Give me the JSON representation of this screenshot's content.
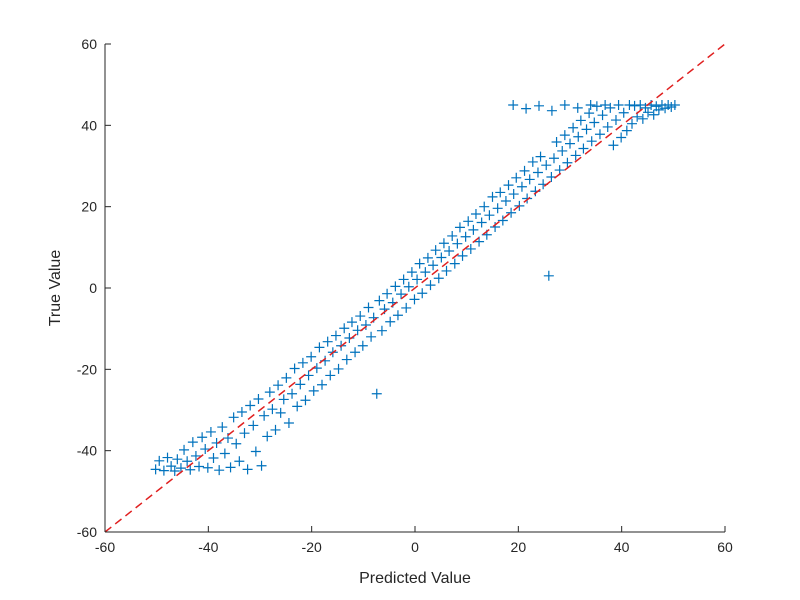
{
  "chart_data": {
    "type": "scatter",
    "title": "",
    "xlabel": "Predicted Value",
    "ylabel": "True Value",
    "xlim": [
      -60,
      60
    ],
    "ylim": [
      -60,
      60
    ],
    "xticks": [
      -60,
      -40,
      -20,
      0,
      20,
      40,
      60
    ],
    "yticks": [
      -60,
      -40,
      -20,
      0,
      20,
      40,
      60
    ],
    "xtick_labels": [
      "-60",
      "-40",
      "-20",
      "0",
      "20",
      "40",
      "60"
    ],
    "ytick_labels": [
      "-60",
      "-40",
      "-20",
      "0",
      "20",
      "40",
      "60"
    ],
    "marker": "+",
    "marker_color": "#0072BD",
    "reference_line": {
      "style": "dashed",
      "color": "#E02020",
      "points": [
        [
          -60,
          -60
        ],
        [
          60,
          60
        ]
      ]
    },
    "grid": false,
    "legend": "none",
    "box": false,
    "series": [
      {
        "points": [
          [
            -50.2,
            -44.6
          ],
          [
            -49.5,
            -42.5
          ],
          [
            -48.6,
            -44.9
          ],
          [
            -47.9,
            -41.7
          ],
          [
            -47.2,
            -43.8
          ],
          [
            -46.5,
            -45.0
          ],
          [
            -46.0,
            -42.1
          ],
          [
            -45.3,
            -44.3
          ],
          [
            -44.7,
            -39.8
          ],
          [
            -44.1,
            -42.6
          ],
          [
            -43.5,
            -44.7
          ],
          [
            -43.0,
            -37.9
          ],
          [
            -42.4,
            -41.3
          ],
          [
            -41.8,
            -43.9
          ],
          [
            -41.2,
            -36.7
          ],
          [
            -40.6,
            -39.6
          ],
          [
            -40.1,
            -44.2
          ],
          [
            -39.5,
            -35.4
          ],
          [
            -39.0,
            -41.8
          ],
          [
            -38.4,
            -38.1
          ],
          [
            -37.9,
            -44.8
          ],
          [
            -37.3,
            -34.2
          ],
          [
            -36.8,
            -40.7
          ],
          [
            -36.2,
            -36.9
          ],
          [
            -35.7,
            -44.1
          ],
          [
            -35.1,
            -31.8
          ],
          [
            -34.6,
            -38.3
          ],
          [
            -34.0,
            -42.6
          ],
          [
            -33.5,
            -30.5
          ],
          [
            -33.0,
            -35.7
          ],
          [
            -32.4,
            -44.6
          ],
          [
            -31.9,
            -28.9
          ],
          [
            -31.3,
            -33.8
          ],
          [
            -30.8,
            -40.2
          ],
          [
            -30.3,
            -27.3
          ],
          [
            -29.7,
            -43.7
          ],
          [
            -29.2,
            -31.4
          ],
          [
            -28.6,
            -36.5
          ],
          [
            -28.1,
            -25.6
          ],
          [
            -27.6,
            -29.8
          ],
          [
            -27.0,
            -34.9
          ],
          [
            -26.5,
            -23.9
          ],
          [
            -26.0,
            -30.7
          ],
          [
            -25.4,
            -27.4
          ],
          [
            -24.9,
            -22.1
          ],
          [
            -24.4,
            -33.2
          ],
          [
            -23.8,
            -26.0
          ],
          [
            -23.3,
            -19.8
          ],
          [
            -22.8,
            -29.1
          ],
          [
            -22.2,
            -23.7
          ],
          [
            -21.7,
            -18.4
          ],
          [
            -21.2,
            -27.6
          ],
          [
            -20.6,
            -21.5
          ],
          [
            -20.1,
            -16.9
          ],
          [
            -19.6,
            -25.3
          ],
          [
            -19.0,
            -19.7
          ],
          [
            -18.5,
            -14.6
          ],
          [
            -18.0,
            -23.8
          ],
          [
            -17.4,
            -17.9
          ],
          [
            -16.9,
            -13.2
          ],
          [
            -16.4,
            -21.5
          ],
          [
            -15.9,
            -15.8
          ],
          [
            -15.3,
            -11.7
          ],
          [
            -14.8,
            -19.9
          ],
          [
            -14.3,
            -14.2
          ],
          [
            -13.7,
            -9.9
          ],
          [
            -13.2,
            -17.6
          ],
          [
            -12.7,
            -12.3
          ],
          [
            -12.2,
            -8.4
          ],
          [
            -11.6,
            -15.8
          ],
          [
            -11.1,
            -10.4
          ],
          [
            -10.6,
            -6.9
          ],
          [
            -10.1,
            -14.2
          ],
          [
            -9.5,
            -9.1
          ],
          [
            -9.0,
            -4.8
          ],
          [
            -8.5,
            -12.0
          ],
          [
            -8.0,
            -7.3
          ],
          [
            -7.4,
            -26.0
          ],
          [
            -6.9,
            -3.1
          ],
          [
            -6.4,
            -10.5
          ],
          [
            -5.9,
            -5.2
          ],
          [
            -5.4,
            -1.4
          ],
          [
            -4.8,
            -8.3
          ],
          [
            -4.3,
            -3.6
          ],
          [
            -3.8,
            0.4
          ],
          [
            -3.3,
            -6.7
          ],
          [
            -2.7,
            -1.5
          ],
          [
            -2.2,
            2.1
          ],
          [
            -1.7,
            -4.9
          ],
          [
            -1.2,
            0.3
          ],
          [
            -0.6,
            3.9
          ],
          [
            -0.1,
            -2.8
          ],
          [
            0.4,
            2.1
          ],
          [
            0.9,
            6.0
          ],
          [
            1.4,
            -1.3
          ],
          [
            2.0,
            3.9
          ],
          [
            2.5,
            7.4
          ],
          [
            3.0,
            0.7
          ],
          [
            3.5,
            5.6
          ],
          [
            4.0,
            9.3
          ],
          [
            4.6,
            2.4
          ],
          [
            5.1,
            7.5
          ],
          [
            5.6,
            11.0
          ],
          [
            6.1,
            4.2
          ],
          [
            6.6,
            9.1
          ],
          [
            7.2,
            12.8
          ],
          [
            7.7,
            6.0
          ],
          [
            8.2,
            10.9
          ],
          [
            8.7,
            14.9
          ],
          [
            9.2,
            7.9
          ],
          [
            9.8,
            12.6
          ],
          [
            10.3,
            16.4
          ],
          [
            10.8,
            9.6
          ],
          [
            11.3,
            14.3
          ],
          [
            11.8,
            18.2
          ],
          [
            12.4,
            11.4
          ],
          [
            12.9,
            16.1
          ],
          [
            13.4,
            20.0
          ],
          [
            13.9,
            13.1
          ],
          [
            14.4,
            17.9
          ],
          [
            15.0,
            22.4
          ],
          [
            15.5,
            15.0
          ],
          [
            16.0,
            19.6
          ],
          [
            16.5,
            23.5
          ],
          [
            17.0,
            16.6
          ],
          [
            17.6,
            21.4
          ],
          [
            18.1,
            25.3
          ],
          [
            18.6,
            18.5
          ],
          [
            19.1,
            23.1
          ],
          [
            19.6,
            27.1
          ],
          [
            20.2,
            20.2
          ],
          [
            20.7,
            24.9
          ],
          [
            21.2,
            28.8
          ],
          [
            21.7,
            22.0
          ],
          [
            22.2,
            26.7
          ],
          [
            22.8,
            31.0
          ],
          [
            23.3,
            23.8
          ],
          [
            23.8,
            28.4
          ],
          [
            24.3,
            32.3
          ],
          [
            24.8,
            25.5
          ],
          [
            25.4,
            30.2
          ],
          [
            25.9,
            3.0
          ],
          [
            26.4,
            27.3
          ],
          [
            26.9,
            31.9
          ],
          [
            27.4,
            35.9
          ],
          [
            28.0,
            29.0
          ],
          [
            28.5,
            33.7
          ],
          [
            29.0,
            37.6
          ],
          [
            29.5,
            30.8
          ],
          [
            30.0,
            35.5
          ],
          [
            30.6,
            39.4
          ],
          [
            31.1,
            32.6
          ],
          [
            31.6,
            37.2
          ],
          [
            32.1,
            41.2
          ],
          [
            32.6,
            34.3
          ],
          [
            33.2,
            39.0
          ],
          [
            33.7,
            43.0
          ],
          [
            34.2,
            36.1
          ],
          [
            34.7,
            40.7
          ],
          [
            35.2,
            44.7
          ],
          [
            35.8,
            37.8
          ],
          [
            36.3,
            42.5
          ],
          [
            36.8,
            45.0
          ],
          [
            37.3,
            39.6
          ],
          [
            37.8,
            44.3
          ],
          [
            38.4,
            35.1
          ],
          [
            38.9,
            41.3
          ],
          [
            39.4,
            45.0
          ],
          [
            39.9,
            37.0
          ],
          [
            40.4,
            43.1
          ],
          [
            41.0,
            38.7
          ],
          [
            41.5,
            45.0
          ],
          [
            42.0,
            40.4
          ],
          [
            42.5,
            44.8
          ],
          [
            43.0,
            42.1
          ],
          [
            43.6,
            45.0
          ],
          [
            44.1,
            41.6
          ],
          [
            44.6,
            44.3
          ],
          [
            45.1,
            43.2
          ],
          [
            45.7,
            45.0
          ],
          [
            46.2,
            42.6
          ],
          [
            46.7,
            44.7
          ],
          [
            47.2,
            43.8
          ],
          [
            47.8,
            45.0
          ],
          [
            48.4,
            44.2
          ],
          [
            49.0,
            45.0
          ],
          [
            49.6,
            44.5
          ],
          [
            50.3,
            45.0
          ],
          [
            19.0,
            45.0
          ],
          [
            21.5,
            44.1
          ],
          [
            24.0,
            44.8
          ],
          [
            26.5,
            43.6
          ],
          [
            29.0,
            45.0
          ],
          [
            31.5,
            44.3
          ],
          [
            34.0,
            45.0
          ]
        ]
      }
    ]
  }
}
